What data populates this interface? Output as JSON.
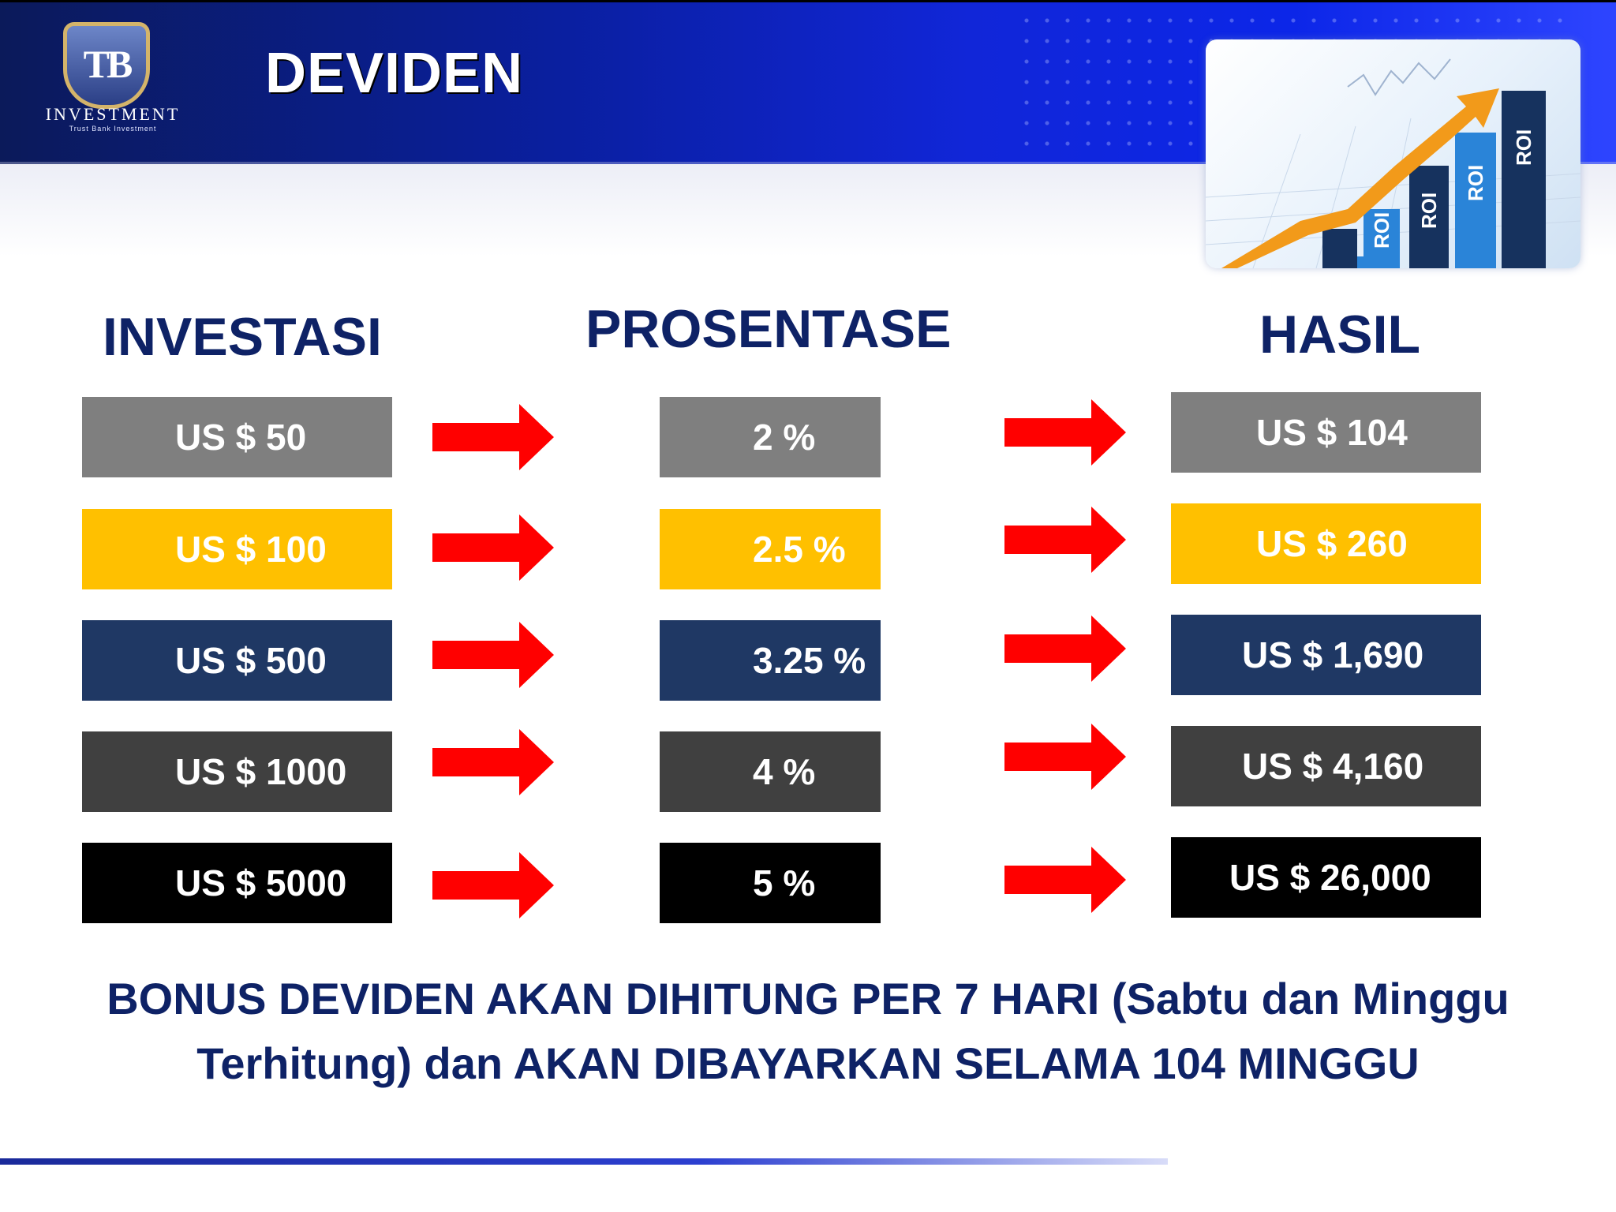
{
  "header": {
    "title": "DEVIDEN",
    "logo": {
      "mark": "TB",
      "word": "INVESTMENT",
      "sub": "Trust Bank Investment"
    },
    "image_labels": [
      "ROI",
      "ROI",
      "ROI",
      "ROI"
    ]
  },
  "columns": {
    "investasi": "INVESTASI",
    "prosentase": "PROSENTASE",
    "hasil": "HASIL"
  },
  "rows": [
    {
      "investasi": "US $ 50",
      "prosentase": "2 %",
      "hasil": "US $ 104",
      "color": "#7f7f7f"
    },
    {
      "investasi": "US $ 100",
      "prosentase": "2.5 %",
      "hasil": "US $ 260",
      "color": "#ffc000"
    },
    {
      "investasi": "US $ 500",
      "prosentase": "3.25 %",
      "hasil": "US $ 1,690",
      "color": "#1f3864"
    },
    {
      "investasi": "US $ 1000",
      "prosentase": "4 %",
      "hasil": "US $ 4,160",
      "color": "#404040"
    },
    {
      "investasi": "US $ 5000",
      "prosentase": "5 %",
      "hasil": "US $ 26,000",
      "color": "#000000"
    }
  ],
  "arrow_color": "#ff0000",
  "note": {
    "line1": "BONUS DEVIDEN AKAN DIHITUNG PER 7 HARI (Sabtu dan Minggu",
    "line2": "Terhitung) dan AKAN DIBAYARKAN SELAMA 104 MINGGU"
  }
}
